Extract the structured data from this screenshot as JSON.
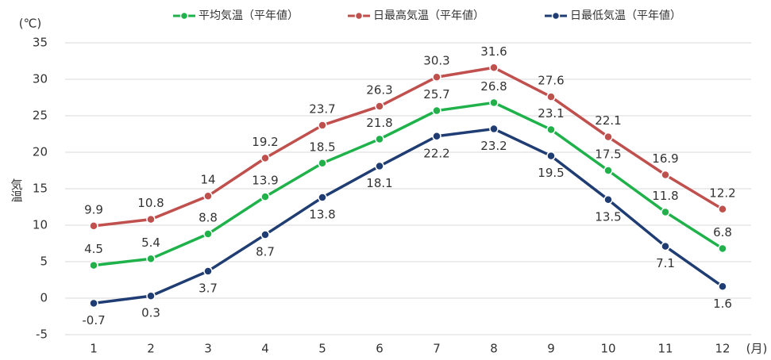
{
  "chart_data": {
    "type": "line",
    "y_label": "気温",
    "y_unit": "(℃)",
    "x_unit": "(月)",
    "categories": [
      "1",
      "2",
      "3",
      "4",
      "5",
      "6",
      "7",
      "8",
      "9",
      "10",
      "11",
      "12"
    ],
    "series": [
      {
        "name": "平均気温（平年値）",
        "color": "#1fb24a",
        "values": [
          4.5,
          5.4,
          8.8,
          13.9,
          18.5,
          21.8,
          25.7,
          26.8,
          23.1,
          17.5,
          11.8,
          6.8
        ]
      },
      {
        "name": "日最高気温（平年値）",
        "color": "#c0504d",
        "values": [
          9.9,
          10.8,
          14,
          19.2,
          23.7,
          26.3,
          30.3,
          31.6,
          27.6,
          22.1,
          16.9,
          12.2
        ]
      },
      {
        "name": "日最低気温（平年値）",
        "color": "#1f3d73",
        "values": [
          -0.7,
          0.3,
          3.7,
          8.7,
          13.8,
          18.1,
          22.2,
          23.2,
          19.5,
          13.5,
          7.1,
          1.6
        ]
      }
    ],
    "ylim": [
      -5,
      35
    ],
    "yticks": [
      -5,
      0,
      5,
      10,
      15,
      20,
      25,
      30,
      35
    ],
    "grid": true,
    "legend": "top"
  }
}
